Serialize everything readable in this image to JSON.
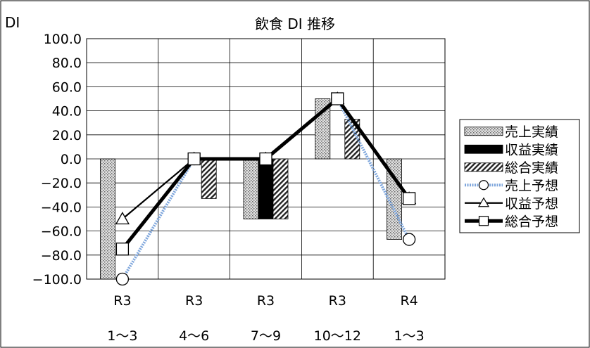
{
  "chart_data": {
    "type": "bar",
    "title": "飲食 DI 推移",
    "ylabel": "DI",
    "ylim": [
      -100,
      100
    ],
    "yticks": [
      100.0,
      80.0,
      60.0,
      40.0,
      20.0,
      0.0,
      -20.0,
      -40.0,
      -60.0,
      -80.0,
      -100.0
    ],
    "ytick_labels": [
      "100.0",
      "80.0",
      "60.0",
      "40.0",
      "20.0",
      "0.0",
      "−20.0",
      "−40.0",
      "−60.0",
      "−80.0",
      "−100.0"
    ],
    "categories": [
      {
        "line1": "R3",
        "line2": "1〜3"
      },
      {
        "line1": "R3",
        "line2": "4〜6"
      },
      {
        "line1": "R3",
        "line2": "7〜9"
      },
      {
        "line1": "R3",
        "line2": "10〜12"
      },
      {
        "line1": "R4",
        "line2": "1〜3"
      }
    ],
    "grid": true,
    "legend_position": "right",
    "bar_series": [
      {
        "name": "売上実績",
        "values": [
          -100,
          0,
          -50,
          50,
          -67
        ],
        "pattern": "dotted",
        "color": "#808080"
      },
      {
        "name": "収益実績",
        "values": [
          0,
          0,
          -50,
          0,
          0
        ],
        "pattern": "solid",
        "color": "#000000"
      },
      {
        "name": "総合実績",
        "values": [
          0,
          -33,
          -50,
          33,
          0
        ],
        "pattern": "diagonal",
        "color": "#404040"
      }
    ],
    "line_series": [
      {
        "name": "売上予想",
        "values": [
          -100,
          0,
          0,
          50,
          -67
        ],
        "marker": "circle",
        "color": "#8fb4e3",
        "style": "dotted-blue"
      },
      {
        "name": "収益予想",
        "values": [
          -50,
          0,
          0,
          50,
          -33
        ],
        "marker": "triangle",
        "color": "#000000",
        "style": "thin"
      },
      {
        "name": "総合予想",
        "values": [
          -75,
          0,
          0,
          50,
          -33
        ],
        "marker": "square",
        "color": "#000000",
        "style": "thick"
      }
    ]
  }
}
